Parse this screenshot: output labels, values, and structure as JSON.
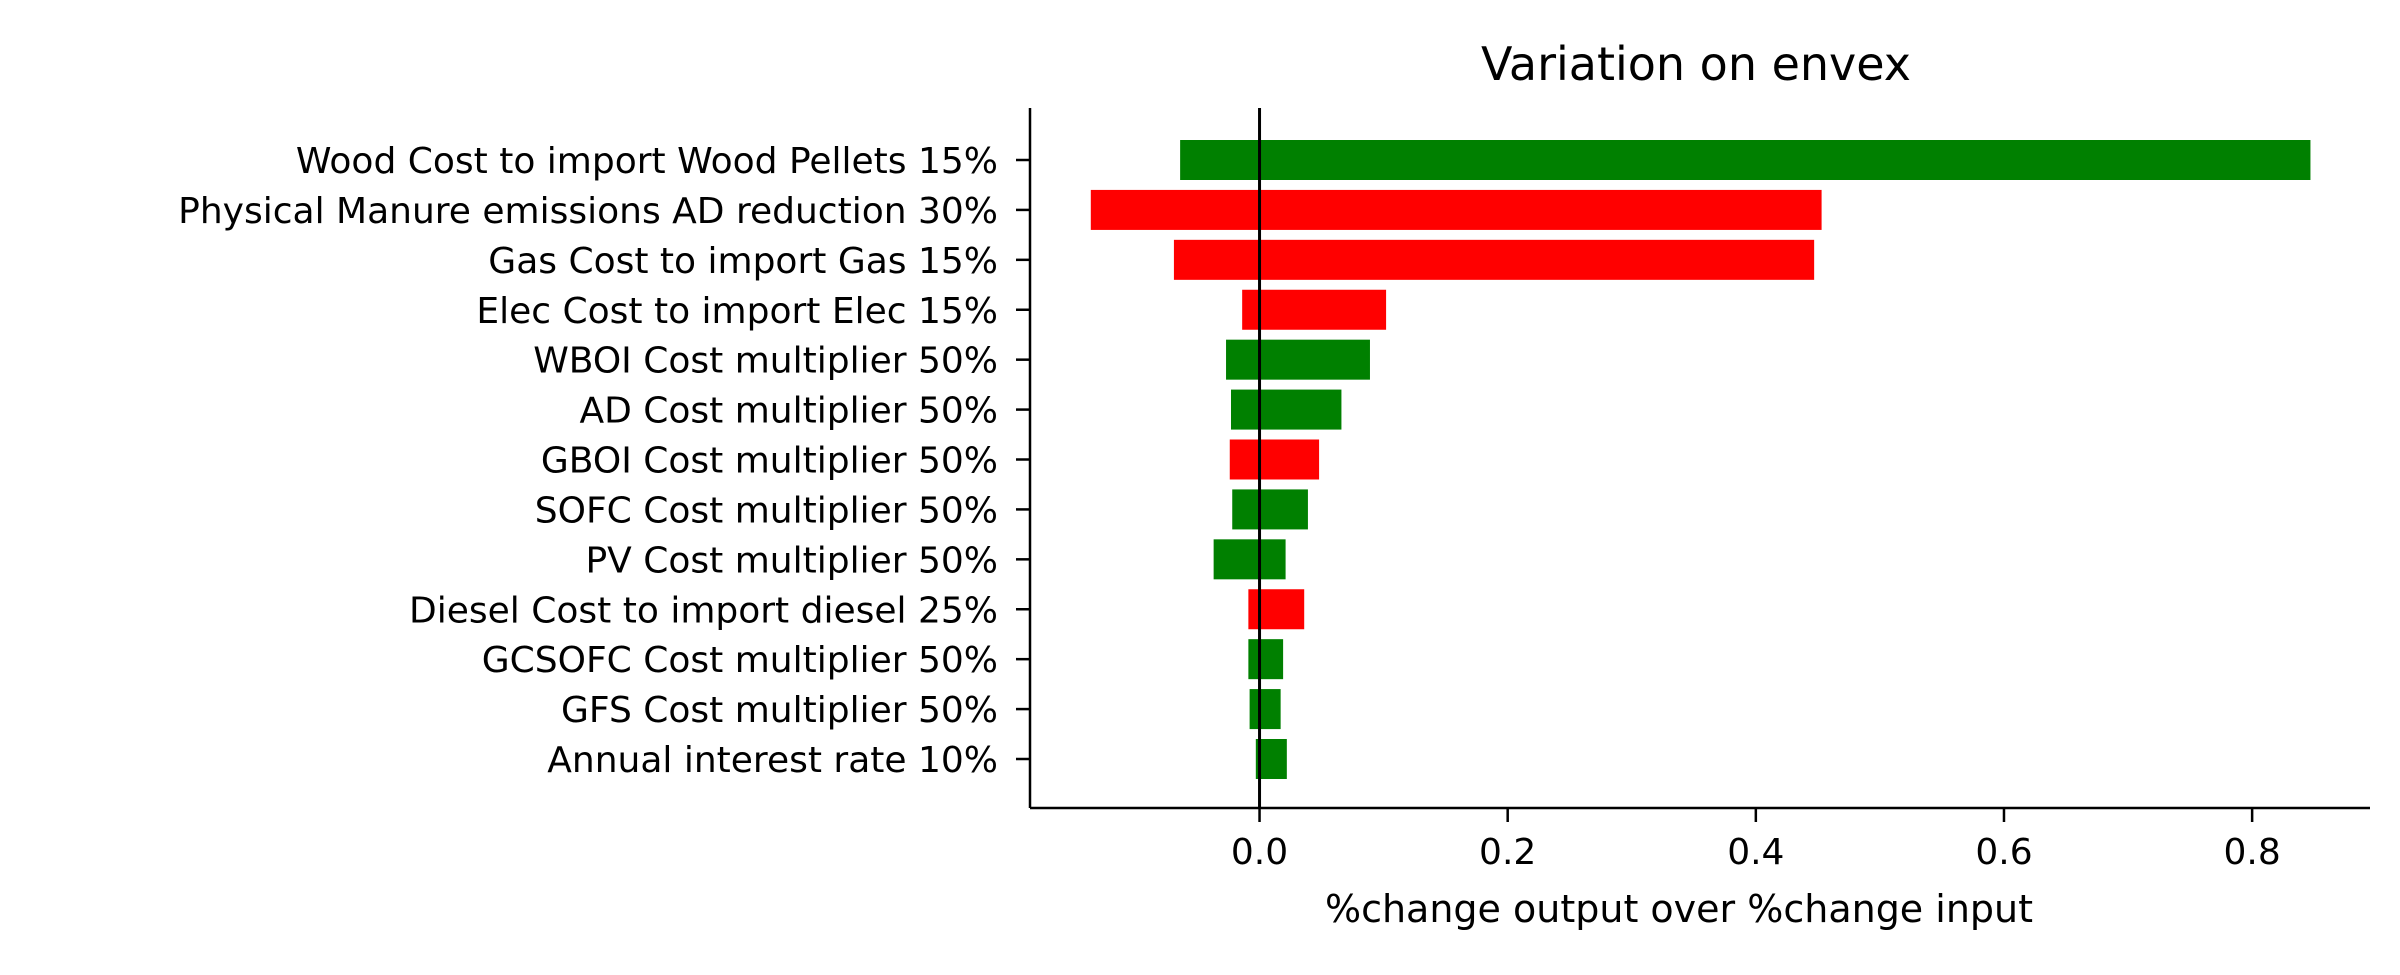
{
  "chart_data": {
    "type": "bar",
    "orientation": "horizontal",
    "title": "Variation on envex",
    "xlabel": "%change output over %change input",
    "ylabel": "",
    "xlim": [
      -0.185,
      0.895
    ],
    "xticks": [
      0.0,
      0.2,
      0.4,
      0.6,
      0.8
    ],
    "xtick_labels": [
      "0.0",
      "0.2",
      "0.4",
      "0.6",
      "0.8"
    ],
    "grid": false,
    "legend": "none",
    "colors": {
      "green": "#008000",
      "red": "#ff0000"
    },
    "bars": [
      {
        "label": "Wood Cost to import Wood Pellets 15%",
        "low": -0.064,
        "high": 0.847,
        "color": "green"
      },
      {
        "label": "Physical Manure emissions AD reduction 30%",
        "low": -0.136,
        "high": 0.453,
        "color": "red"
      },
      {
        "label": "Gas Cost to import Gas 15%",
        "low": -0.069,
        "high": 0.447,
        "color": "red"
      },
      {
        "label": "Elec Cost to import Elec  15%",
        "low": -0.014,
        "high": 0.102,
        "color": "red"
      },
      {
        "label": "WBOI Cost multiplier 50%",
        "low": -0.027,
        "high": 0.089,
        "color": "green"
      },
      {
        "label": "AD Cost multiplier 50%",
        "low": -0.023,
        "high": 0.066,
        "color": "green"
      },
      {
        "label": "GBOI Cost multiplier 50%",
        "low": -0.024,
        "high": 0.048,
        "color": "red"
      },
      {
        "label": "SOFC Cost multiplier 50%",
        "low": -0.022,
        "high": 0.039,
        "color": "green"
      },
      {
        "label": "PV Cost multiplier 50%",
        "low": -0.037,
        "high": 0.021,
        "color": "green"
      },
      {
        "label": "Diesel Cost to import diesel 25%",
        "low": -0.009,
        "high": 0.036,
        "color": "red"
      },
      {
        "label": "GCSOFC Cost multiplier 50%",
        "low": -0.009,
        "high": 0.019,
        "color": "green"
      },
      {
        "label": "GFS Cost multiplier 50%",
        "low": -0.008,
        "high": 0.017,
        "color": "green"
      },
      {
        "label": "Annual interest rate 10%",
        "low": -0.003,
        "high": 0.022,
        "color": "green"
      }
    ]
  }
}
